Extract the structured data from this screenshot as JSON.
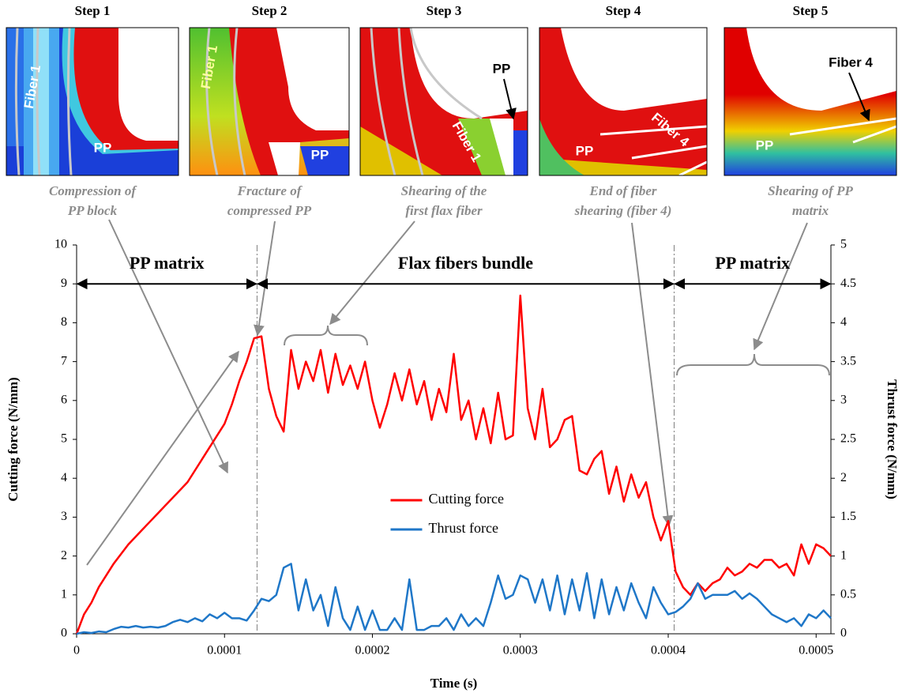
{
  "steps": [
    {
      "title": "Step 1",
      "caption": [
        "Compression of",
        "PP block"
      ],
      "labels": [
        "Fiber 1",
        "PP"
      ]
    },
    {
      "title": "Step 2",
      "caption": [
        "Fracture of",
        "compressed PP"
      ],
      "labels": [
        "Fiber 1",
        "PP"
      ]
    },
    {
      "title": "Step 3",
      "caption": [
        "Shearing of the",
        "first flax fiber"
      ],
      "labels": [
        "PP",
        "Fiber 1"
      ]
    },
    {
      "title": "Step 4",
      "caption": [
        "End of fiber",
        "shearing (fiber 4)"
      ],
      "labels": [
        "PP",
        "Fiber 4"
      ]
    },
    {
      "title": "Step 5",
      "caption": [
        "Shearing of PP",
        "matrix"
      ],
      "labels": [
        "Fiber 4",
        "PP"
      ]
    }
  ],
  "chart_data": {
    "type": "line",
    "xlabel": "Time (s)",
    "ylabel": "Cutting force (N/mm)",
    "y2label": "Thrust force (N/mm)",
    "xlim": [
      0,
      0.00051
    ],
    "xticks": [
      0,
      0.0001,
      0.0002,
      0.0003,
      0.0004,
      0.0005
    ],
    "ylim": [
      0,
      10
    ],
    "yticks": [
      0,
      1,
      2,
      3,
      4,
      5,
      6,
      7,
      8,
      9,
      10
    ],
    "y2lim": [
      0,
      5
    ],
    "y2ticks": [
      0,
      0.5,
      1,
      1.5,
      2,
      2.5,
      3,
      3.5,
      4,
      4.5,
      5
    ],
    "legend": "center",
    "regions_y": 9,
    "boundaries": [
      0.000122,
      0.000404
    ],
    "regions": [
      {
        "label": "PP matrix"
      },
      {
        "label": "Flax fibers bundle"
      },
      {
        "label": "PP matrix"
      }
    ],
    "x": [
      0,
      5e-06,
      1e-05,
      1.5e-05,
      2e-05,
      2.5e-05,
      3e-05,
      3.5e-05,
      4e-05,
      4.5e-05,
      5e-05,
      5.5e-05,
      6e-05,
      6.5e-05,
      7e-05,
      7.5e-05,
      8e-05,
      8.5e-05,
      9e-05,
      9.5e-05,
      0.0001,
      0.000105,
      0.00011,
      0.000115,
      0.00012,
      0.000125,
      0.00013,
      0.000135,
      0.00014,
      0.000145,
      0.00015,
      0.000155,
      0.00016,
      0.000165,
      0.00017,
      0.000175,
      0.00018,
      0.000185,
      0.00019,
      0.000195,
      0.0002,
      0.000205,
      0.00021,
      0.000215,
      0.00022,
      0.000225,
      0.00023,
      0.000235,
      0.00024,
      0.000245,
      0.00025,
      0.000255,
      0.00026,
      0.000265,
      0.00027,
      0.000275,
      0.00028,
      0.000285,
      0.00029,
      0.000295,
      0.0003,
      0.000305,
      0.00031,
      0.000315,
      0.00032,
      0.000325,
      0.00033,
      0.000335,
      0.00034,
      0.000345,
      0.00035,
      0.000355,
      0.00036,
      0.000365,
      0.00037,
      0.000375,
      0.00038,
      0.000385,
      0.00039,
      0.000395,
      0.0004,
      0.000405,
      0.00041,
      0.000415,
      0.00042,
      0.000425,
      0.00043,
      0.000435,
      0.00044,
      0.000445,
      0.00045,
      0.000455,
      0.00046,
      0.000465,
      0.00047,
      0.000475,
      0.00048,
      0.000485,
      0.00049,
      0.000495,
      0.0005,
      0.000505,
      0.00051
    ],
    "series": [
      {
        "name": "Cutting force",
        "color": "#ff0000",
        "axis": "y",
        "values": [
          0,
          0.5,
          0.8,
          1.2,
          1.5,
          1.8,
          2.05,
          2.3,
          2.5,
          2.7,
          2.9,
          3.1,
          3.3,
          3.5,
          3.7,
          3.9,
          4.2,
          4.5,
          4.8,
          5.1,
          5.4,
          5.9,
          6.5,
          7.0,
          7.6,
          7.65,
          6.3,
          5.6,
          5.2,
          7.3,
          6.3,
          7.0,
          6.5,
          7.3,
          6.2,
          7.2,
          6.4,
          6.9,
          6.3,
          7.0,
          6.0,
          5.3,
          5.9,
          6.7,
          6.0,
          6.8,
          5.9,
          6.5,
          5.5,
          6.3,
          5.7,
          7.2,
          5.5,
          6.0,
          5.0,
          5.8,
          4.9,
          6.2,
          5.0,
          5.1,
          8.7,
          5.8,
          5.0,
          6.3,
          4.8,
          5.0,
          5.5,
          5.6,
          4.2,
          4.1,
          4.5,
          4.7,
          3.6,
          4.3,
          3.4,
          4.1,
          3.5,
          3.9,
          3.0,
          2.4,
          2.9,
          1.6,
          1.2,
          1.0,
          1.3,
          1.1,
          1.3,
          1.4,
          1.7,
          1.5,
          1.6,
          1.8,
          1.7,
          1.9,
          1.9,
          1.7,
          1.8,
          1.5,
          2.3,
          1.8,
          2.3,
          2.2,
          2.0
        ]
      },
      {
        "name": "Thrust force",
        "color": "#1f77c8",
        "axis": "y2",
        "values": [
          0,
          0.02,
          0.01,
          0.03,
          0.02,
          0.06,
          0.09,
          0.08,
          0.1,
          0.08,
          0.09,
          0.08,
          0.1,
          0.15,
          0.18,
          0.15,
          0.2,
          0.16,
          0.25,
          0.2,
          0.27,
          0.2,
          0.2,
          0.17,
          0.3,
          0.45,
          0.42,
          0.5,
          0.85,
          0.9,
          0.3,
          0.7,
          0.3,
          0.5,
          0.1,
          0.6,
          0.2,
          0.05,
          0.35,
          0.05,
          0.3,
          0.05,
          0.05,
          0.2,
          0.05,
          0.7,
          0.05,
          0.05,
          0.1,
          0.1,
          0.2,
          0.05,
          0.25,
          0.1,
          0.2,
          0.1,
          0.4,
          0.75,
          0.45,
          0.5,
          0.75,
          0.7,
          0.4,
          0.7,
          0.3,
          0.75,
          0.25,
          0.7,
          0.3,
          0.78,
          0.2,
          0.7,
          0.25,
          0.6,
          0.3,
          0.65,
          0.4,
          0.2,
          0.6,
          0.4,
          0.25,
          0.28,
          0.35,
          0.45,
          0.65,
          0.45,
          0.5,
          0.5,
          0.5,
          0.55,
          0.45,
          0.52,
          0.45,
          0.35,
          0.25,
          0.2,
          0.15,
          0.2,
          0.1,
          0.25,
          0.2,
          0.3,
          0.2
        ]
      }
    ]
  }
}
